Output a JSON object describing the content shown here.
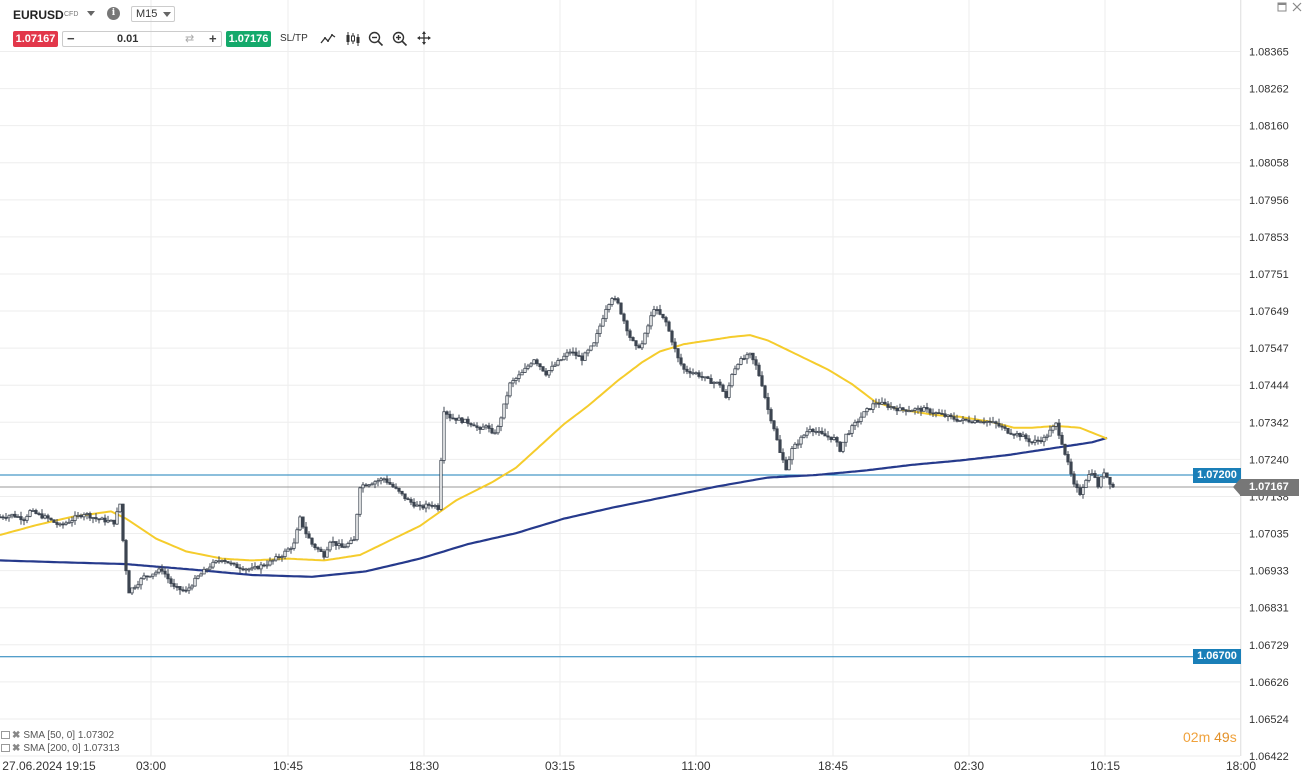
{
  "toolbar": {
    "symbol": "EURUSD",
    "symbol_type": "CFD",
    "timeframe": "M15",
    "sell_price": "1.07167",
    "buy_price": "1.07176",
    "quantity": "0.01",
    "sltp_label": "SL/TP",
    "icons": [
      "chevron-down-icon",
      "info-icon",
      "line-chart-icon",
      "candlestick-icon",
      "zoom-out-icon",
      "zoom-in-icon",
      "crosshair-icon",
      "minimize-icon",
      "close-icon"
    ]
  },
  "chart_data": {
    "type": "candlestick",
    "symbol": "EURUSD",
    "timeframe": "M15",
    "y_ticks": [
      "1.08365",
      "1.08262",
      "1.08160",
      "1.08058",
      "1.07956",
      "1.07853",
      "1.07751",
      "1.07649",
      "1.07547",
      "1.07444",
      "1.07342",
      "1.07240",
      "1.07138",
      "1.07035",
      "1.06933",
      "1.06831",
      "1.06729",
      "1.06626",
      "1.06524",
      "1.06422"
    ],
    "ylim": [
      1.0642,
      1.0847
    ],
    "x_ticks": [
      "27.06.2024 19:15",
      "03:00",
      "10:45",
      "18:30",
      "03:15",
      "11:00",
      "18:45",
      "02:30",
      "10:15",
      "18:00"
    ],
    "levels": [
      {
        "price": 1.072,
        "label": "1.07200",
        "color": "#1a7fb8"
      },
      {
        "price": 1.067,
        "label": "1.06700",
        "color": "#1a7fb8"
      }
    ],
    "current_price": {
      "price": 1.07167,
      "label": "1.07167"
    },
    "indicators": [
      {
        "name": "SMA [50, 0]",
        "value": "1.07302",
        "color": "#f5cc2c"
      },
      {
        "name": "SMA [200, 0]",
        "value": "1.07313",
        "color": "#263a8c"
      }
    ],
    "close_path": [
      [
        0,
        1.07085
      ],
      [
        4,
        1.0709
      ],
      [
        8,
        1.0708
      ],
      [
        10,
        1.071
      ],
      [
        16,
        1.0708
      ],
      [
        20,
        1.0706
      ],
      [
        28,
        1.07095
      ],
      [
        32,
        1.0708
      ],
      [
        38,
        1.0707
      ],
      [
        40,
        1.0712
      ],
      [
        41,
        1.0702
      ],
      [
        42,
        1.0694
      ],
      [
        43,
        1.0688
      ],
      [
        48,
        1.0692
      ],
      [
        54,
        1.0694
      ],
      [
        58,
        1.0689
      ],
      [
        62,
        1.0688
      ],
      [
        66,
        1.0692
      ],
      [
        70,
        1.0695
      ],
      [
        74,
        1.0697
      ],
      [
        78,
        1.0695
      ],
      [
        84,
        1.0694
      ],
      [
        90,
        1.0696
      ],
      [
        94,
        1.0698
      ],
      [
        98,
        1.0701
      ],
      [
        100,
        1.0708
      ],
      [
        102,
        1.0704
      ],
      [
        104,
        1.0701
      ],
      [
        108,
        1.0698
      ],
      [
        110,
        1.0702
      ],
      [
        114,
        1.07
      ],
      [
        118,
        1.0702
      ],
      [
        120,
        1.0717
      ],
      [
        124,
        1.0718
      ],
      [
        128,
        1.0719
      ],
      [
        132,
        1.0716
      ],
      [
        136,
        1.0713
      ],
      [
        140,
        1.0711
      ],
      [
        144,
        1.0712
      ],
      [
        146,
        1.0711
      ],
      [
        148,
        1.0738
      ],
      [
        150,
        1.0736
      ],
      [
        154,
        1.0735
      ],
      [
        158,
        1.0734
      ],
      [
        160,
        1.0732
      ],
      [
        162,
        1.0734
      ],
      [
        164,
        1.0731
      ],
      [
        166,
        1.0733
      ],
      [
        168,
        1.0739
      ],
      [
        170,
        1.0745
      ],
      [
        174,
        1.0748
      ],
      [
        178,
        1.0752
      ],
      [
        182,
        1.0748
      ],
      [
        186,
        1.0751
      ],
      [
        190,
        1.0754
      ],
      [
        194,
        1.0752
      ],
      [
        198,
        1.0756
      ],
      [
        202,
        1.0766
      ],
      [
        204,
        1.0769
      ],
      [
        206,
        1.0767
      ],
      [
        210,
        1.0758
      ],
      [
        212,
        1.0755
      ],
      [
        214,
        1.0756
      ],
      [
        218,
        1.0766
      ],
      [
        220,
        1.0764
      ],
      [
        222,
        1.0762
      ],
      [
        224,
        1.0757
      ],
      [
        226,
        1.0752
      ],
      [
        228,
        1.0749
      ],
      [
        232,
        1.0748
      ],
      [
        236,
        1.0746
      ],
      [
        240,
        1.0745
      ],
      [
        242,
        1.0741
      ],
      [
        244,
        1.0748
      ],
      [
        246,
        1.0751
      ],
      [
        250,
        1.0753
      ],
      [
        252,
        1.075
      ],
      [
        254,
        1.0745
      ],
      [
        256,
        1.0738
      ],
      [
        258,
        1.0733
      ],
      [
        260,
        1.0726
      ],
      [
        262,
        1.0722
      ],
      [
        264,
        1.0727
      ],
      [
        266,
        1.0729
      ],
      [
        270,
        1.0733
      ],
      [
        274,
        1.0731
      ],
      [
        278,
        1.073
      ],
      [
        280,
        1.0727
      ],
      [
        282,
        1.0731
      ],
      [
        284,
        1.0733
      ],
      [
        288,
        1.0737
      ],
      [
        292,
        1.074
      ],
      [
        296,
        1.0739
      ],
      [
        300,
        1.0738
      ],
      [
        304,
        1.0738
      ],
      [
        308,
        1.0738
      ],
      [
        312,
        1.0737
      ],
      [
        316,
        1.0736
      ],
      [
        320,
        1.0735
      ],
      [
        324,
        1.0735
      ],
      [
        328,
        1.0735
      ],
      [
        332,
        1.0734
      ],
      [
        336,
        1.0732
      ],
      [
        340,
        1.0731
      ],
      [
        344,
        1.0729
      ],
      [
        348,
        1.073
      ],
      [
        350,
        1.0732
      ],
      [
        352,
        1.0734
      ],
      [
        354,
        1.0729
      ],
      [
        356,
        1.0723
      ],
      [
        358,
        1.0717
      ],
      [
        360,
        1.0715
      ],
      [
        362,
        1.0719
      ],
      [
        364,
        1.0721
      ],
      [
        366,
        1.0717
      ],
      [
        368,
        1.0721
      ],
      [
        370,
        1.0718
      ],
      [
        371,
        1.07167
      ]
    ],
    "sma50_path": [
      [
        0,
        1.07035
      ],
      [
        12,
        1.07062
      ],
      [
        24,
        1.07085
      ],
      [
        37,
        1.071
      ],
      [
        42,
        1.0708
      ],
      [
        52,
        1.07025
      ],
      [
        62,
        1.0699
      ],
      [
        74,
        1.0697
      ],
      [
        84,
        1.06965
      ],
      [
        96,
        1.0697
      ],
      [
        108,
        1.06965
      ],
      [
        120,
        1.0698
      ],
      [
        130,
        1.0702
      ],
      [
        140,
        1.0706
      ],
      [
        152,
        1.0713
      ],
      [
        164,
        1.0718
      ],
      [
        172,
        1.0722
      ],
      [
        180,
        1.0728
      ],
      [
        188,
        1.0734
      ],
      [
        196,
        1.0739
      ],
      [
        206,
        1.0746
      ],
      [
        214,
        1.0751
      ],
      [
        220,
        1.0754
      ],
      [
        228,
        1.0756
      ],
      [
        236,
        1.0757
      ],
      [
        244,
        1.0758
      ],
      [
        250,
        1.07585
      ],
      [
        256,
        1.0757
      ],
      [
        266,
        1.0753
      ],
      [
        276,
        1.0749
      ],
      [
        284,
        1.0745
      ],
      [
        292,
        1.074
      ],
      [
        300,
        1.0738
      ],
      [
        312,
        1.07365
      ],
      [
        320,
        1.0736
      ],
      [
        330,
        1.07347
      ],
      [
        338,
        1.0733
      ],
      [
        344,
        1.0733
      ],
      [
        352,
        1.07335
      ],
      [
        360,
        1.0733
      ],
      [
        366,
        1.0731
      ],
      [
        369,
        1.073
      ]
    ],
    "sma200_path": [
      [
        0,
        1.06965
      ],
      [
        20,
        1.0696
      ],
      [
        42,
        1.06955
      ],
      [
        64,
        1.0694
      ],
      [
        84,
        1.06925
      ],
      [
        104,
        1.0692
      ],
      [
        122,
        1.06935
      ],
      [
        140,
        1.0697
      ],
      [
        156,
        1.0701
      ],
      [
        172,
        1.0704
      ],
      [
        188,
        1.0708
      ],
      [
        204,
        1.0711
      ],
      [
        222,
        1.0714
      ],
      [
        240,
        1.0717
      ],
      [
        256,
        1.07193
      ],
      [
        272,
        1.072
      ],
      [
        288,
        1.07212
      ],
      [
        304,
        1.07228
      ],
      [
        320,
        1.0724
      ],
      [
        336,
        1.07255
      ],
      [
        352,
        1.07275
      ],
      [
        364,
        1.0729
      ],
      [
        369,
        1.07302
      ]
    ]
  },
  "footer": {
    "timer_minutes": "02",
    "timer_minutes_unit": "m",
    "timer_seconds": "49",
    "timer_seconds_unit": "s"
  }
}
